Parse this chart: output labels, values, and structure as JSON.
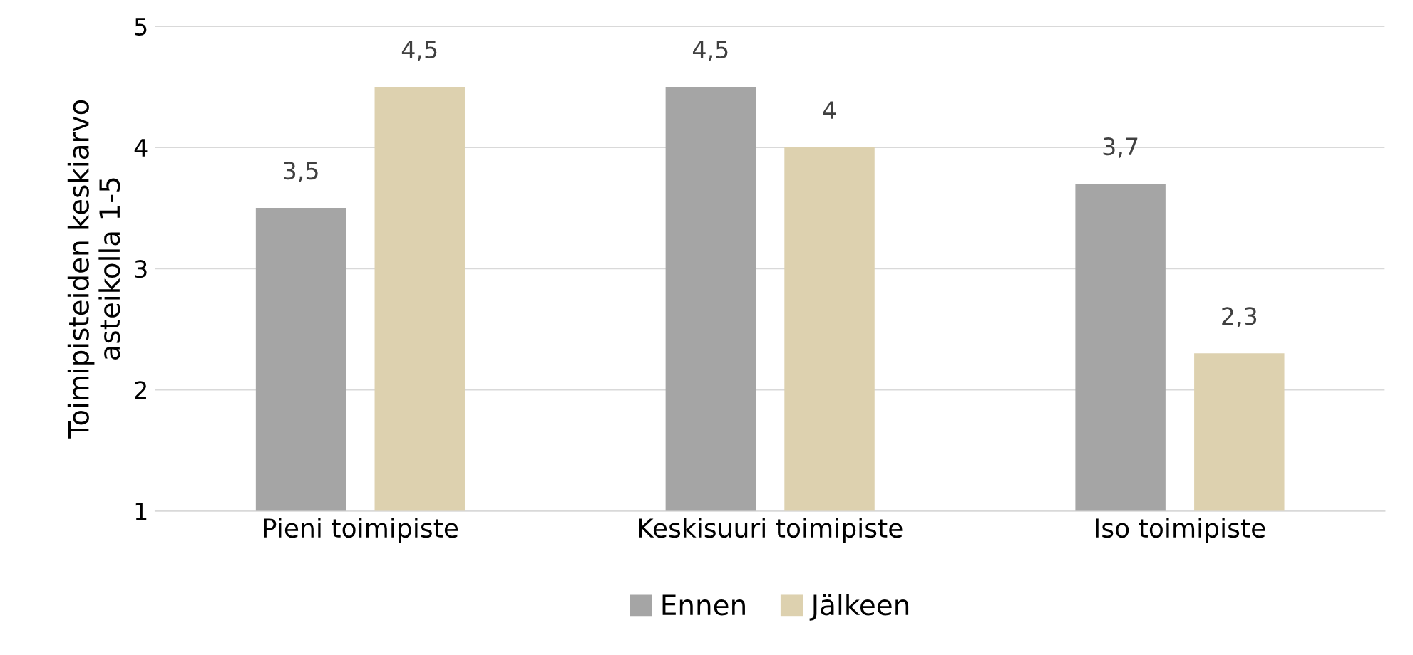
{
  "chart_data": {
    "type": "bar",
    "ylabel": "Toimipisteiden keskiarvo\nasteikolla 1-5",
    "categories": [
      "Pieni toimipiste",
      "Keskisuuri toimipiste",
      "Iso toimipiste"
    ],
    "series": [
      {
        "name": "Ennen",
        "color": "#a5a5a5",
        "values": [
          3.5,
          4.5,
          3.7
        ],
        "value_labels": [
          "3,5",
          "4,5",
          "3,7"
        ]
      },
      {
        "name": "Jälkeen",
        "color": "#ddd1af",
        "values": [
          4.5,
          4,
          2.3
        ],
        "value_labels": [
          "4,5",
          "4",
          "2,3"
        ]
      }
    ],
    "ylim": [
      1,
      5
    ],
    "yticks": [
      1,
      2,
      3,
      4,
      5
    ],
    "grid": "y",
    "legend": "bottom"
  }
}
